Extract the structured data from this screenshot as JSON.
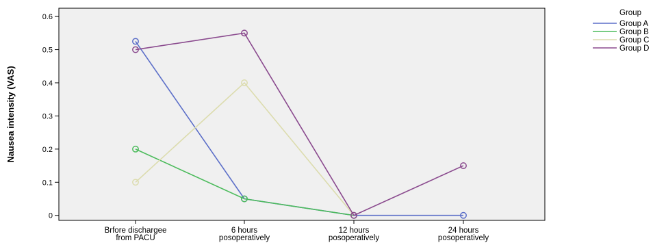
{
  "chart_data": {
    "type": "line",
    "title": "",
    "xlabel": "",
    "ylabel": "Nausea intensity (VAS)",
    "categories": [
      [
        "Brfore dischargee",
        "from PACU"
      ],
      [
        "6 hours",
        "posoperatively"
      ],
      [
        "12 hours",
        "posoperatively"
      ],
      [
        "24 hours",
        "posoperatively"
      ]
    ],
    "ylim": [
      -0.015,
      0.625
    ],
    "yticks": [
      0,
      0.1,
      0.2,
      0.3,
      0.4,
      0.5,
      0.6
    ],
    "ytick_labels": [
      "0",
      "0.1",
      "0.2",
      "0.3",
      "0.4",
      "0.5",
      "0.6"
    ],
    "grid": false,
    "plot_background": "#f0f0f0",
    "legend": {
      "title": "Group",
      "placement": "right"
    },
    "series": [
      {
        "name": "Group A",
        "color": "#5b6ec8",
        "values": [
          0.525,
          0.05,
          0,
          0
        ]
      },
      {
        "name": "Group B",
        "color": "#4cbb5c",
        "values": [
          0.2,
          0.05,
          0,
          null
        ]
      },
      {
        "name": "Group C",
        "color": "#dcdcae",
        "values": [
          0.1,
          0.4,
          0,
          null
        ]
      },
      {
        "name": "Group D",
        "color": "#8a4a8e",
        "values": [
          0.5,
          0.55,
          0,
          0.15
        ]
      }
    ]
  }
}
